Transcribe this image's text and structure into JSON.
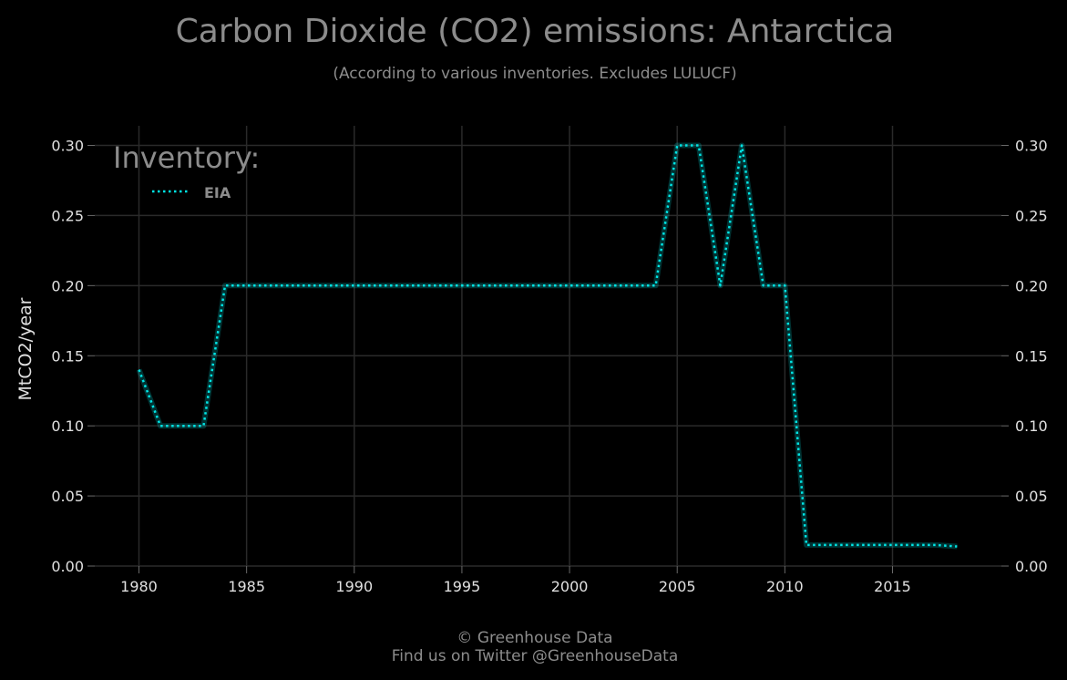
{
  "colors": {
    "background": "#000000",
    "series": "#00e5e5",
    "grid": "#2a2a2a",
    "text": "#e0e0e0",
    "muted": "#8c8c8c"
  },
  "footer": {
    "line1": "© Greenhouse Data",
    "line2": "Find us on Twitter @GreenhouseData"
  },
  "chart_data": {
    "type": "line",
    "title": "Carbon Dioxide (CO2) emissions: Antarctica",
    "subtitle": "(According to various inventories. Excludes LULUCF)",
    "xlabel": "",
    "ylabel": "MtCO2/year",
    "xlim": [
      1978,
      2020
    ],
    "ylim": [
      0,
      0.315
    ],
    "x_ticks": [
      1980,
      1985,
      1990,
      1995,
      2000,
      2005,
      2010,
      2015
    ],
    "x_tick_labels": [
      "1980",
      "1985",
      "1990",
      "1995",
      "2000",
      "2005",
      "2010",
      "2015"
    ],
    "y_ticks": [
      0,
      0.05,
      0.1,
      0.15,
      0.2,
      0.25,
      0.3
    ],
    "y_tick_labels": [
      "0.00",
      "0.05",
      "0.10",
      "0.15",
      "0.20",
      "0.25",
      "0.30"
    ],
    "y_axis_both_sides": true,
    "grid": true,
    "legend": {
      "title": "Inventory:",
      "position": "top-left"
    },
    "series": [
      {
        "name": "EIA",
        "line_style": "dotted",
        "color": "#00e5e5",
        "x": [
          1980,
          1981,
          1982,
          1983,
          1984,
          1985,
          1986,
          1987,
          1988,
          1989,
          1990,
          1991,
          1992,
          1993,
          1994,
          1995,
          1996,
          1997,
          1998,
          1999,
          2000,
          2001,
          2002,
          2003,
          2004,
          2005,
          2006,
          2007,
          2008,
          2009,
          2010,
          2011,
          2012,
          2013,
          2014,
          2015,
          2016,
          2017,
          2018
        ],
        "values": [
          0.14,
          0.1,
          0.1,
          0.1,
          0.2,
          0.2,
          0.2,
          0.2,
          0.2,
          0.2,
          0.2,
          0.2,
          0.2,
          0.2,
          0.2,
          0.2,
          0.2,
          0.2,
          0.2,
          0.2,
          0.2,
          0.2,
          0.2,
          0.2,
          0.2,
          0.3,
          0.3,
          0.2,
          0.3,
          0.2,
          0.2,
          0.015,
          0.015,
          0.015,
          0.015,
          0.015,
          0.015,
          0.015,
          0.014
        ]
      }
    ]
  }
}
